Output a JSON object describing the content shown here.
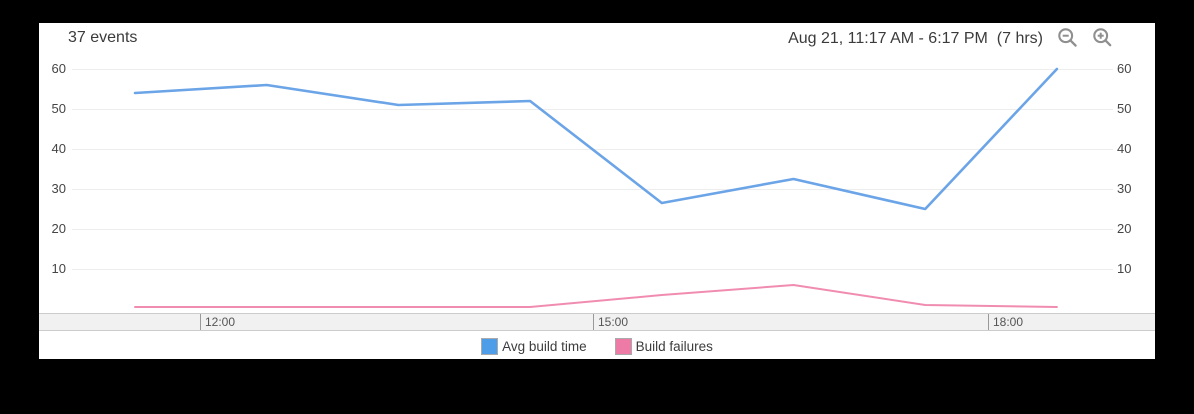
{
  "app": {
    "background_color": "#000000",
    "card_background": "#ffffff"
  },
  "header": {
    "events_count": "37 events",
    "time_range": "Aug 21, 11:17 AM - 6:17 PM  (7 hrs)",
    "zoom_out_icon": "magnifier-minus",
    "zoom_in_icon": "magnifier-plus",
    "icon_color": "#8f8f8f"
  },
  "chart_data": {
    "type": "line",
    "title": "37 events",
    "x_estimated": [
      "11:30",
      "12:30",
      "13:30",
      "14:30",
      "15:30",
      "16:30",
      "17:30",
      "18:30"
    ],
    "xticks": [
      "12:00",
      "15:00",
      "18:00"
    ],
    "yticks": [
      10,
      20,
      30,
      40,
      50,
      60
    ],
    "ylim": [
      0,
      62
    ],
    "grid": true,
    "legend_position": "bottom",
    "series": [
      {
        "name": "Avg build time",
        "legend_color": "#4d9de9",
        "line_color": "#6ba4e7",
        "values": [
          54,
          56,
          51,
          52,
          26.5,
          32.5,
          25,
          60
        ]
      },
      {
        "name": "Build failures",
        "legend_color": "#ee7ba6",
        "line_color": "#f18cb1",
        "values": [
          0.5,
          0.5,
          0.5,
          0.5,
          3.5,
          6,
          1,
          0.5
        ]
      }
    ],
    "colors": {
      "gridline": "#ededed",
      "axis_band_bg": "#f1f1f1",
      "axis_band_border": "#cccccc",
      "tick": "#999999",
      "axis_text": "#555555",
      "ylabel_text": "#454545"
    }
  }
}
